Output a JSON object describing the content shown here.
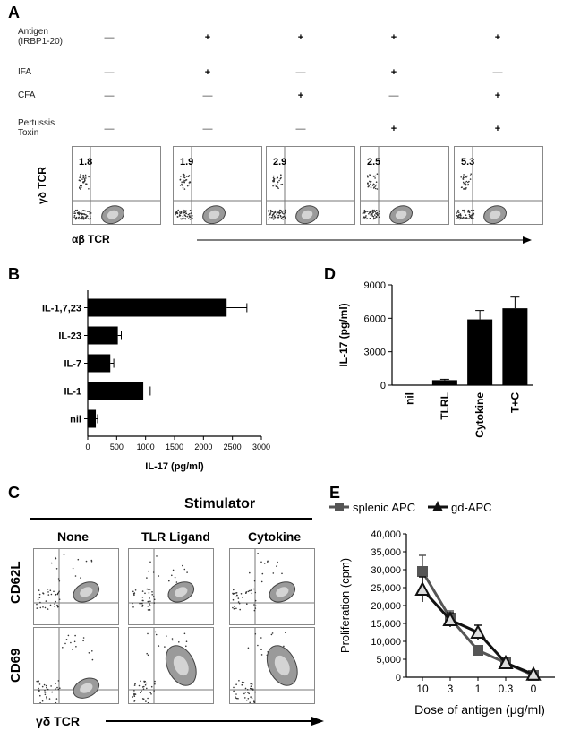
{
  "panel_a": {
    "label": "A",
    "rows": [
      {
        "name": "Antigen\n(IRBP1-20)",
        "values": [
          "—",
          "+",
          "+",
          "+",
          "+"
        ]
      },
      {
        "name": "IFA",
        "values": [
          "—",
          "+",
          "—",
          "+",
          "—"
        ]
      },
      {
        "name": "CFA",
        "values": [
          "—",
          "—",
          "+",
          "—",
          "+"
        ]
      },
      {
        "name": "Pertussis\nToxin",
        "values": [
          "—",
          "—",
          "—",
          "+",
          "+"
        ]
      }
    ],
    "percentages": [
      "1.8",
      "1.9",
      "2.9",
      "2.5",
      "5.3"
    ],
    "y_axis": "γδ TCR",
    "x_axis": "αβ TCR"
  },
  "panel_c": {
    "label": "C",
    "stimulator": "Stimulator",
    "columns": [
      "None",
      "TLR Ligand",
      "Cytokine"
    ],
    "rows": [
      "CD62L",
      "CD69"
    ],
    "x_axis": "γδ TCR"
  },
  "chart_data": [
    {
      "panel": "B",
      "type": "bar",
      "orientation": "horizontal",
      "categories": [
        "IL-1,7,23",
        "IL-23",
        "IL-7",
        "IL-1",
        "nil"
      ],
      "values": [
        2400,
        520,
        390,
        960,
        140
      ],
      "errors": [
        350,
        60,
        60,
        120,
        30
      ],
      "xlabel": "IL-17 (pg/ml)",
      "xlim": [
        0,
        3000
      ],
      "xticks": [
        "0",
        "500",
        "1000",
        "1500",
        "2000",
        "2500",
        "3000"
      ]
    },
    {
      "panel": "D",
      "type": "bar",
      "categories": [
        "nil",
        "TLRL",
        "Cytokine",
        "T+C"
      ],
      "values": [
        0,
        450,
        5900,
        6900
      ],
      "errors": [
        0,
        80,
        800,
        1000
      ],
      "ylabel": "IL-17 (pg/ml)",
      "ylim": [
        0,
        9000
      ],
      "yticks": [
        "0",
        "3000",
        "6000",
        "9000"
      ]
    },
    {
      "panel": "E",
      "type": "line",
      "categories": [
        "10",
        "3",
        "1",
        "0.3",
        "0"
      ],
      "series": [
        {
          "name": "splenic APC",
          "values": [
            29500,
            16500,
            7500,
            4000,
            500
          ],
          "errors": [
            4500,
            2000,
            500,
            300,
            300
          ],
          "color": "#555555",
          "marker": "square"
        },
        {
          "name": "gd-APC",
          "values": [
            24500,
            16000,
            12500,
            4000,
            800
          ],
          "errors": [
            3500,
            2000,
            2000,
            500,
            300
          ],
          "color": "#111111",
          "marker": "triangle"
        }
      ],
      "xlabel": "Dose of antigen (μg/ml)",
      "ylabel": "Proliferation (cpm)",
      "ylim": [
        0,
        40000
      ],
      "yticks": [
        "0",
        "5,000",
        "10,000",
        "15,000",
        "20,000",
        "25,000",
        "30,000",
        "35,000",
        "40,000"
      ]
    }
  ]
}
